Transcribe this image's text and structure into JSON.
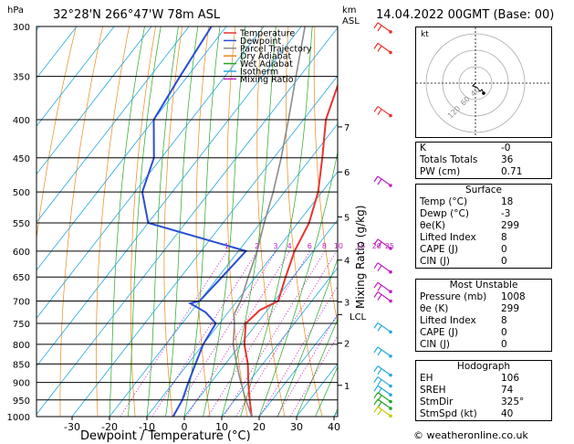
{
  "header": {
    "location": "32°28'N  266°47'W  78m  ASL",
    "datetime": "14.04.2022  00GMT  (Base: 00)",
    "hpa_label": "hPa",
    "km_label": "km",
    "asl_label": "ASL"
  },
  "axes": {
    "xlabel": "Dewpoint / Temperature (°C)",
    "right_label": "Mixing Ratio (g/kg)",
    "lcl_label": "LCL"
  },
  "legend": [
    {
      "label": "Temperature",
      "color": "#e8352f"
    },
    {
      "label": "Dewpoint",
      "color": "#2b4ed4"
    },
    {
      "label": "Parcel Trajectory",
      "color": "#8c8c8c"
    },
    {
      "label": "Dry Adiabat",
      "color": "#e88a1a"
    },
    {
      "label": "Wet Adiabat",
      "color": "#26a626"
    },
    {
      "label": "Isotherm",
      "color": "#25a8e0"
    },
    {
      "label": "Mixing Ratio",
      "color": "#c21fc2"
    }
  ],
  "chart_data": {
    "type": "skew-t",
    "pressure_levels": [
      300,
      350,
      400,
      450,
      500,
      550,
      600,
      650,
      700,
      750,
      800,
      850,
      900,
      950,
      1000
    ],
    "x_ticks": [
      -30,
      -20,
      -10,
      0,
      10,
      20,
      30,
      40
    ],
    "xlim": [
      -40,
      40
    ],
    "ylim": [
      1000,
      300
    ],
    "km_ticks": [
      {
        "km": "1",
        "p": 908
      },
      {
        "km": "2",
        "p": 797
      },
      {
        "km": "3",
        "p": 702
      },
      {
        "km": "4",
        "p": 617
      },
      {
        "km": "5",
        "p": 540
      },
      {
        "km": "6",
        "p": 470
      },
      {
        "km": "7",
        "p": 409
      }
    ],
    "lcl_p": 730,
    "mixing_ratio_labels": [
      "1",
      "2",
      "3",
      "4",
      "6",
      "8",
      "10",
      "15",
      "20",
      "25"
    ],
    "series": [
      {
        "name": "Temperature",
        "color": "#e8352f",
        "points": [
          [
            1000,
            18
          ],
          [
            950,
            14
          ],
          [
            900,
            10
          ],
          [
            850,
            6
          ],
          [
            800,
            1
          ],
          [
            750,
            -3
          ],
          [
            720,
            -2
          ],
          [
            700,
            1
          ],
          [
            650,
            -2
          ],
          [
            600,
            -5
          ],
          [
            550,
            -7
          ],
          [
            500,
            -11
          ],
          [
            450,
            -17
          ],
          [
            400,
            -24
          ],
          [
            350,
            -29
          ],
          [
            300,
            -35
          ]
        ]
      },
      {
        "name": "Dewpoint",
        "color": "#2b4ed4",
        "points": [
          [
            1000,
            -3
          ],
          [
            950,
            -4
          ],
          [
            900,
            -6
          ],
          [
            850,
            -8
          ],
          [
            800,
            -10
          ],
          [
            750,
            -11
          ],
          [
            725,
            -16
          ],
          [
            705,
            -22
          ],
          [
            700,
            -20
          ],
          [
            650,
            -19
          ],
          [
            600,
            -18
          ],
          [
            550,
            -50
          ],
          [
            500,
            -58
          ],
          [
            450,
            -62
          ],
          [
            400,
            -70
          ],
          [
            350,
            -72
          ],
          [
            300,
            -74
          ]
        ]
      },
      {
        "name": "Parcel Trajectory",
        "color": "#8c8c8c",
        "points": [
          [
            1000,
            18
          ],
          [
            950,
            13
          ],
          [
            900,
            8
          ],
          [
            850,
            3
          ],
          [
            800,
            -2
          ],
          [
            750,
            -6
          ],
          [
            730,
            -8
          ],
          [
            700,
            -9
          ],
          [
            650,
            -12
          ],
          [
            600,
            -15
          ],
          [
            550,
            -19
          ],
          [
            500,
            -23
          ],
          [
            450,
            -28
          ],
          [
            400,
            -34
          ],
          [
            350,
            -41
          ],
          [
            300,
            -49
          ]
        ]
      }
    ]
  },
  "indices": {
    "rows": [
      {
        "label": "K",
        "value": "-0"
      },
      {
        "label": "Totals Totals",
        "value": "36"
      },
      {
        "label": "PW (cm)",
        "value": "0.71"
      }
    ],
    "surface": {
      "title": "Surface",
      "rows": [
        {
          "label": "Temp (°C)",
          "value": "18"
        },
        {
          "label": "Dewp (°C)",
          "value": "-3"
        },
        {
          "label": "θe(K)",
          "value": "299"
        },
        {
          "label": "Lifted Index",
          "value": "8"
        },
        {
          "label": "CAPE (J)",
          "value": "0"
        },
        {
          "label": "CIN (J)",
          "value": "0"
        }
      ]
    },
    "most_unstable": {
      "title": "Most Unstable",
      "rows": [
        {
          "label": "Pressure (mb)",
          "value": "1008"
        },
        {
          "label": "θe (K)",
          "value": "299"
        },
        {
          "label": "Lifted Index",
          "value": "8"
        },
        {
          "label": "CAPE (J)",
          "value": "0"
        },
        {
          "label": "CIN (J)",
          "value": "0"
        }
      ]
    },
    "hodograph": {
      "title": "Hodograph",
      "rows": [
        {
          "label": "EH",
          "value": "106"
        },
        {
          "label": "SREH",
          "value": "74"
        },
        {
          "label": "StmDir",
          "value": "325°"
        },
        {
          "label": "StmSpd (kt)",
          "value": "40"
        }
      ]
    }
  },
  "hodograph_panel": {
    "unit": "kt",
    "ring_labels": [
      "40",
      "60",
      "120"
    ]
  },
  "footer": {
    "copyright": "© weatheronline.co.uk"
  }
}
